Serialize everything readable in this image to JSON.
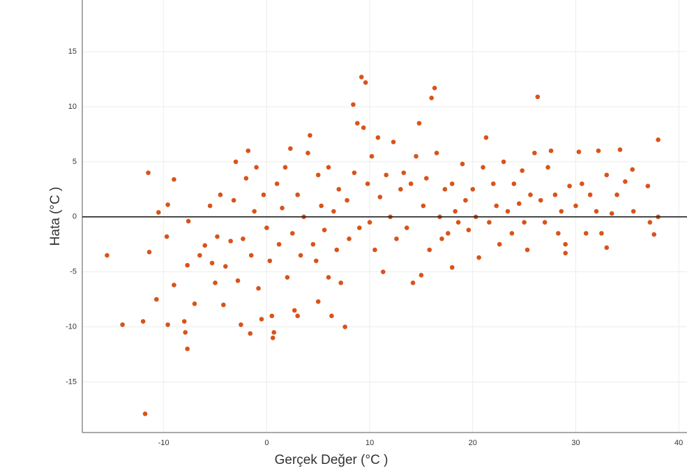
{
  "chart_data": {
    "type": "scatter",
    "xlabel": "Gerçek Değer (°C )",
    "ylabel": "Hata (°C )",
    "x": [
      -15.5,
      -14,
      -11.8,
      -11.5,
      -11.4,
      -12,
      -10.5,
      -10.7,
      -9.7,
      -9.6,
      -9.6,
      -9,
      -9,
      -8,
      -7.9,
      -7.7,
      -7.7,
      -7.6,
      -7,
      -6.5,
      -6,
      -5.5,
      -5.3,
      -5,
      -4.8,
      -4.5,
      -4.2,
      -4,
      -3.5,
      -3.2,
      -3,
      -2.8,
      -2.5,
      -2.3,
      -2,
      -1.8,
      -1.6,
      -1.5,
      -1.2,
      -1,
      -0.8,
      -0.5,
      -0.3,
      0,
      0.3,
      0.5,
      0.6,
      0.7,
      1,
      1.2,
      1.5,
      1.8,
      2,
      2.3,
      2.5,
      2.7,
      3,
      3,
      3.3,
      3.6,
      4,
      4.2,
      4.5,
      4.8,
      5,
      5,
      5.3,
      5.6,
      6,
      6,
      6.3,
      6.5,
      6.8,
      7,
      7.2,
      7.6,
      7.8,
      8,
      8.4,
      8.5,
      8.8,
      9,
      9.2,
      9.4,
      9.6,
      9.8,
      10,
      10.2,
      10.5,
      10.8,
      11,
      11.3,
      11.6,
      12,
      12.3,
      12.6,
      13,
      13.3,
      13.6,
      14,
      14.2,
      14.5,
      14.8,
      15,
      15.2,
      15.5,
      15.8,
      16,
      16.3,
      16.5,
      16.8,
      17,
      17.3,
      17.6,
      18,
      18,
      18.3,
      18.6,
      19,
      19.3,
      19.6,
      20,
      20.3,
      20.6,
      21,
      21.3,
      21.6,
      22,
      22.3,
      22.6,
      23,
      23.4,
      23.8,
      24,
      24.5,
      24.8,
      25,
      25.3,
      25.6,
      26,
      26.3,
      26.6,
      27,
      27.3,
      27.6,
      28,
      28.3,
      28.6,
      29,
      29,
      29.4,
      30,
      30.3,
      30.6,
      31,
      31.4,
      32,
      32.2,
      32.5,
      33,
      33,
      33.5,
      34,
      34.3,
      34.8,
      35.5,
      35.6,
      37,
      37.2,
      37.6,
      38,
      38
    ],
    "values": [
      -3.5,
      -9.8,
      -17.9,
      4,
      -3.2,
      -9.5,
      0.4,
      -7.5,
      -1.8,
      1.1,
      -9.8,
      3.4,
      -6.2,
      -9.5,
      -10.5,
      -12,
      -4.4,
      -0.4,
      -7.9,
      -3.5,
      -2.6,
      1,
      -4.2,
      -6,
      -1.8,
      2,
      -8,
      -4.5,
      -2.2,
      1.5,
      5,
      -5.8,
      -9.8,
      -2,
      3.5,
      6,
      -10.6,
      -3.5,
      0.5,
      4.5,
      -6.5,
      -9.3,
      2,
      -1,
      -4,
      -9,
      -11,
      -10.5,
      3,
      -2.5,
      0.8,
      4.5,
      -5.5,
      6.2,
      -1.5,
      -8.5,
      2,
      -9,
      -3.5,
      0,
      5.8,
      7.4,
      -2.5,
      -4,
      3.8,
      -7.7,
      1,
      -1.2,
      4.5,
      -5.5,
      -9,
      0.5,
      -3,
      2.5,
      -6,
      -10,
      1.5,
      -2,
      10.2,
      4,
      8.5,
      -1,
      12.7,
      8.1,
      12.2,
      3,
      -0.5,
      5.5,
      -3,
      7.2,
      1.8,
      -5,
      3.8,
      0,
      6.8,
      -2,
      2.5,
      4,
      -1,
      3,
      -6,
      5.5,
      8.5,
      -5.3,
      1,
      3.5,
      -3,
      10.8,
      11.7,
      5.8,
      0,
      -2,
      2.5,
      -1.5,
      3,
      -4.6,
      0.5,
      -0.5,
      4.8,
      1.5,
      -1.2,
      2.5,
      0,
      -3.7,
      4.5,
      7.2,
      -0.5,
      3,
      1,
      -2.5,
      5,
      0.5,
      -1.5,
      3,
      1.2,
      4.2,
      -0.5,
      -3,
      2,
      5.8,
      10.9,
      1.5,
      -0.5,
      4.5,
      6,
      2,
      -1.5,
      0.5,
      -2.5,
      -3.3,
      2.8,
      1,
      5.9,
      3,
      -1.5,
      2,
      0.5,
      6,
      -1.5,
      -2.8,
      3.8,
      0.3,
      2,
      6.1,
      3.2,
      4.3,
      0.5,
      2.8,
      -0.5,
      -1.6,
      7,
      0
    ],
    "color": "#d95319",
    "reference_line": 0,
    "xlim": [
      -17.9,
      40.8
    ],
    "ylim": [
      -19.6,
      19.7
    ],
    "xticks": [
      -10,
      0,
      10,
      20,
      30,
      40
    ],
    "yticks": [
      -15,
      -10,
      -5,
      0,
      5,
      10,
      15
    ],
    "grid": true
  }
}
